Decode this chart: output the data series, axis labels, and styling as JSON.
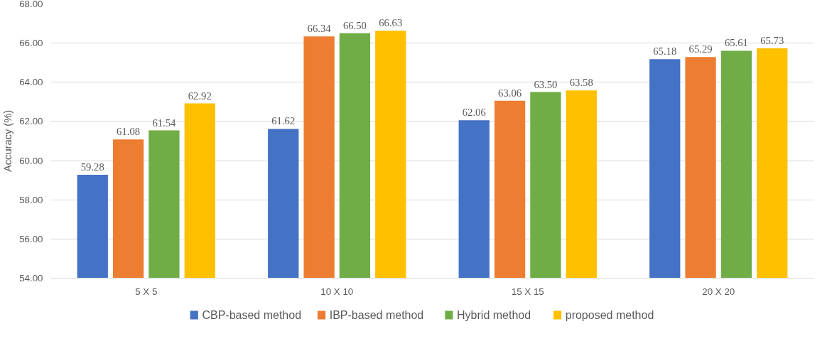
{
  "chart_data": {
    "type": "bar",
    "ylabel": "Accuracy (%)",
    "categories": [
      "5 X 5",
      "10 X 10",
      "15 X 15",
      "20 X 20"
    ],
    "series": [
      {
        "name": "CBP-based method",
        "color": "#4472c4",
        "values": [
          59.28,
          61.62,
          62.06,
          65.18
        ],
        "value_labels": [
          "59.28",
          "61.62",
          "62.06",
          "65.18"
        ]
      },
      {
        "name": "IBP-based method",
        "color": "#ed7d31",
        "values": [
          61.08,
          66.34,
          63.06,
          65.29
        ],
        "value_labels": [
          "61.08",
          "66.34",
          "63.06",
          "65.29"
        ]
      },
      {
        "name": "Hybrid method",
        "color": "#70ad47",
        "values": [
          61.54,
          66.5,
          63.5,
          65.61
        ],
        "value_labels": [
          "61.54",
          "66.50",
          "63.50",
          "65.61"
        ]
      },
      {
        "name": "proposed method",
        "color": "#ffc000",
        "values": [
          62.92,
          66.63,
          63.58,
          65.73
        ],
        "value_labels": [
          "62.92",
          "66.63",
          "63.58",
          "65.73"
        ]
      }
    ],
    "ylim": [
      54,
      68
    ],
    "yticks": [
      {
        "value": 54,
        "label": "54.00"
      },
      {
        "value": 56,
        "label": "56.00"
      },
      {
        "value": 58,
        "label": "58.00"
      },
      {
        "value": 60,
        "label": "60.00"
      },
      {
        "value": 62,
        "label": "62.00"
      },
      {
        "value": 64,
        "label": "64.00"
      },
      {
        "value": 66,
        "label": "66.00"
      },
      {
        "value": 68,
        "label": "68.00"
      }
    ],
    "grid": "y",
    "legend": "bottom"
  }
}
